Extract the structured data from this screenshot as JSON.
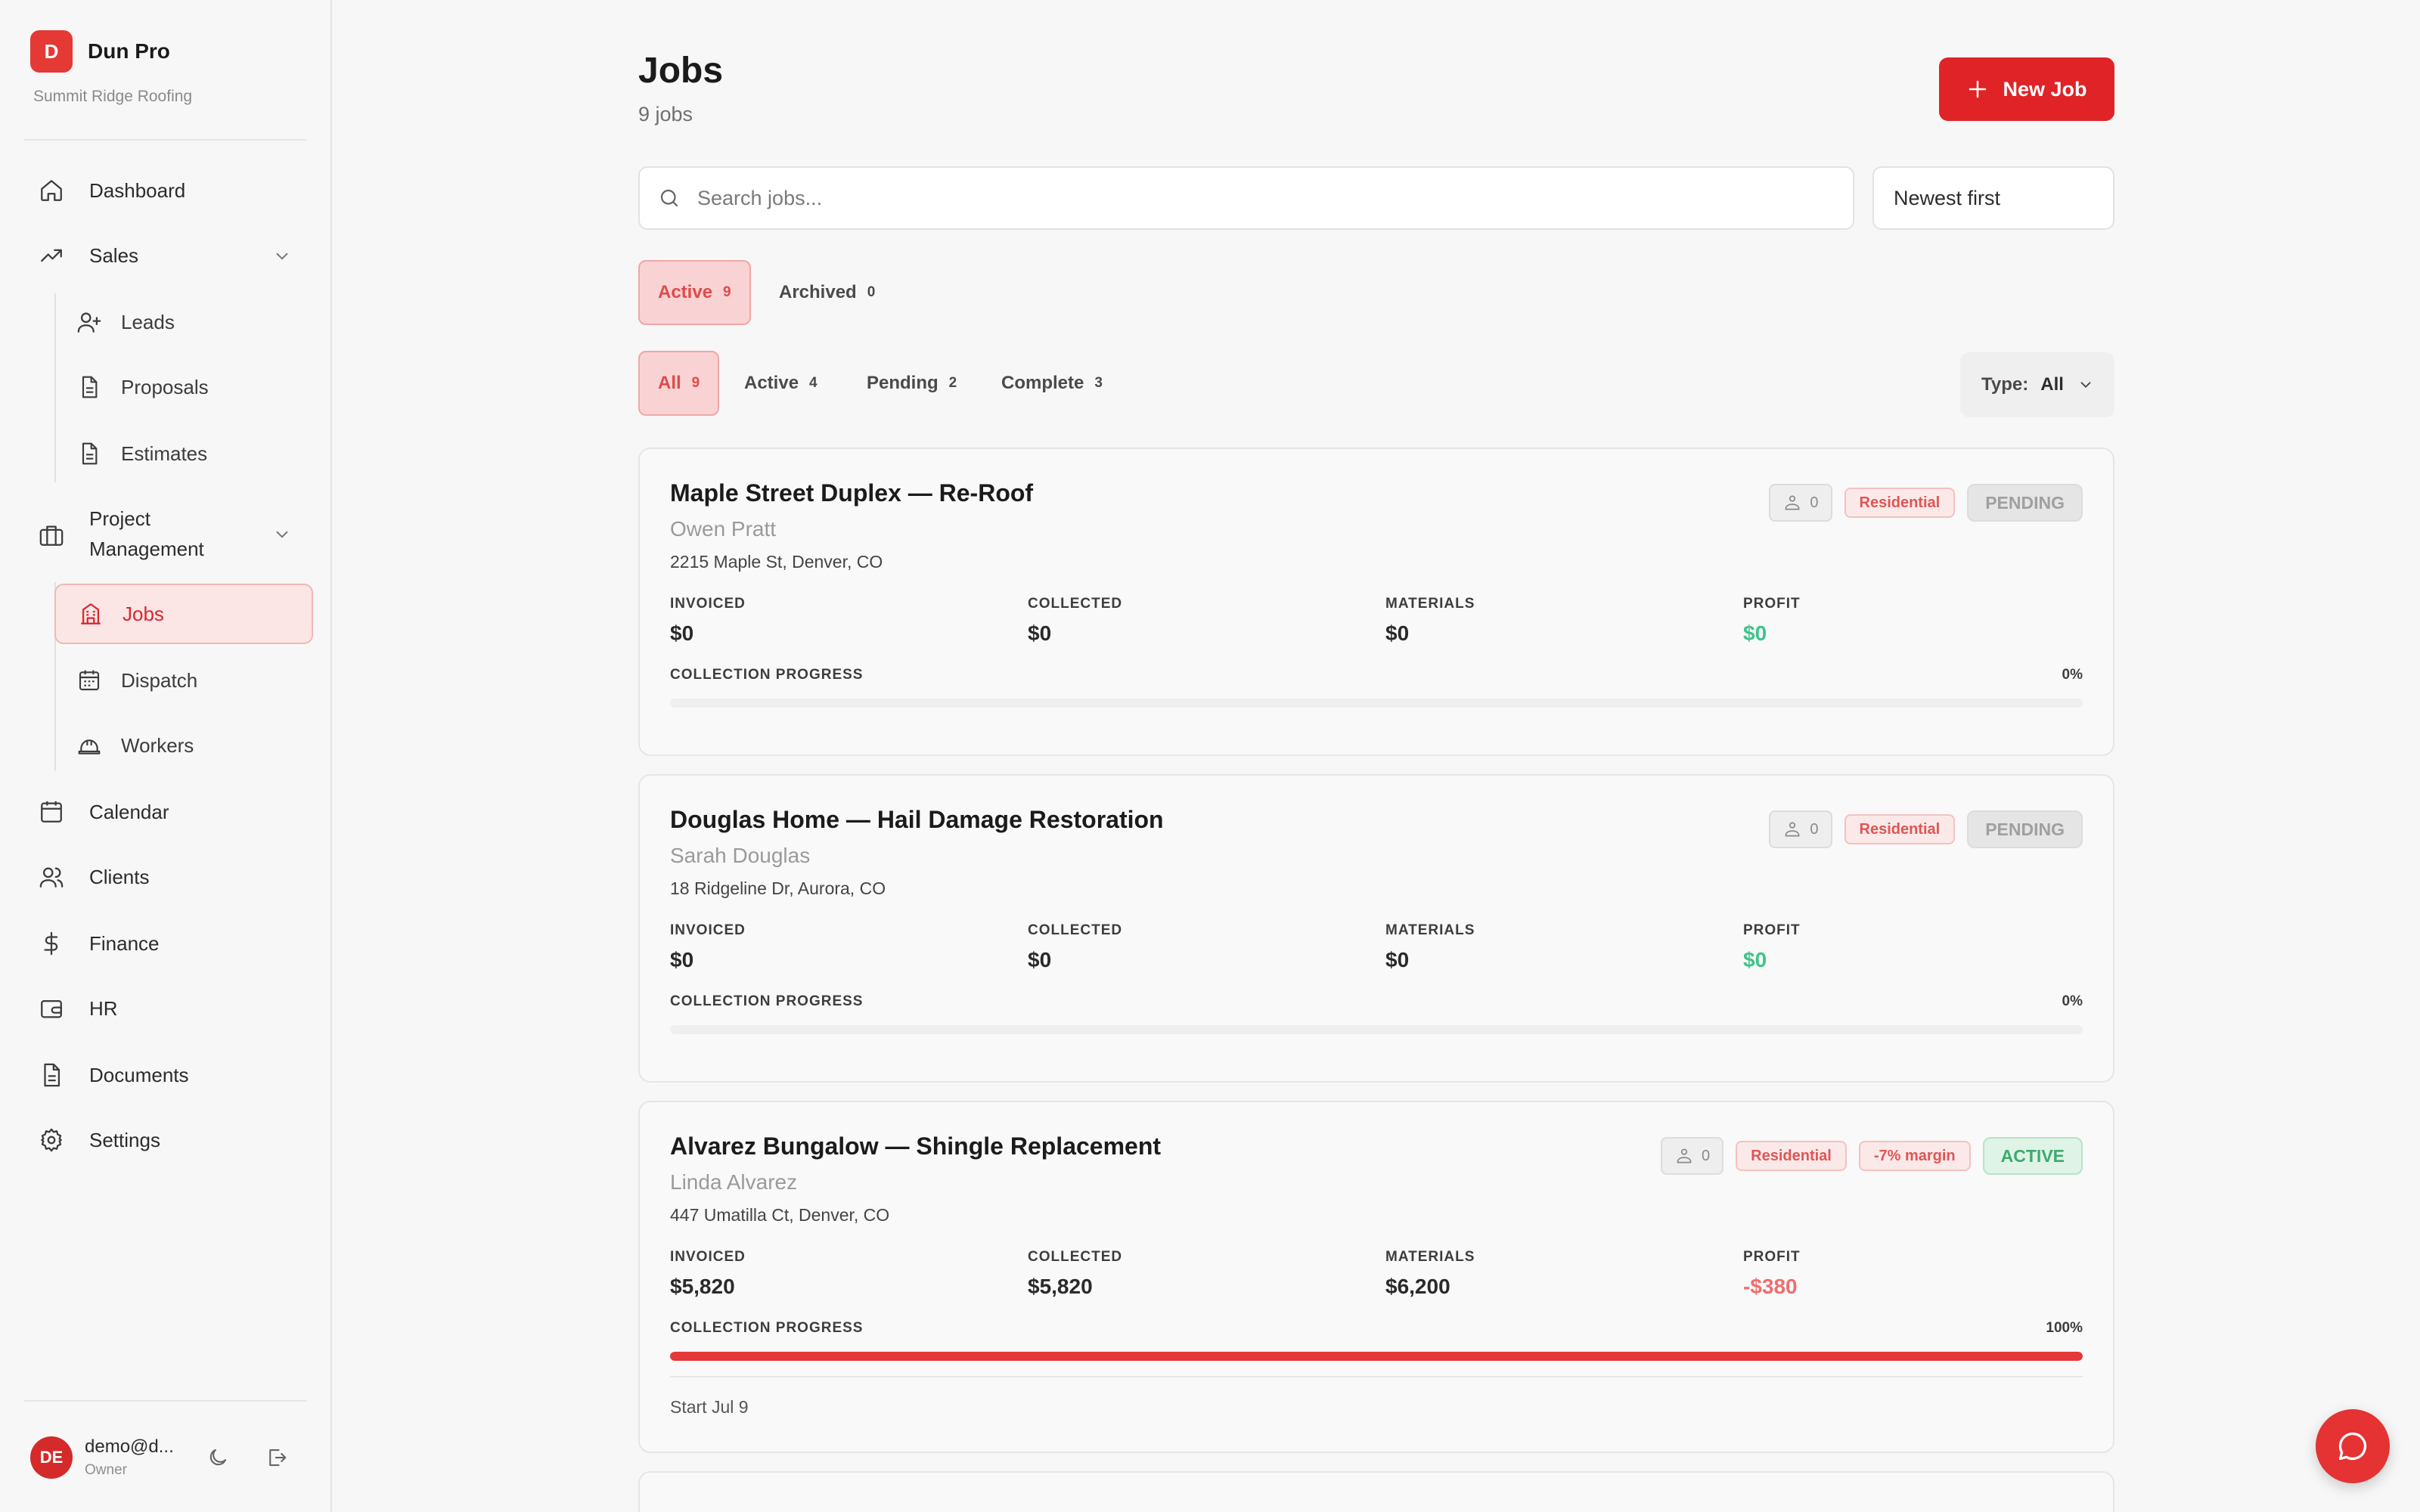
{
  "app": {
    "name": "Dun Pro",
    "logo_letter": "D",
    "company": "Summit Ridge Roofing"
  },
  "nav": {
    "dashboard": "Dashboard",
    "sales": "Sales",
    "leads": "Leads",
    "proposals": "Proposals",
    "estimates": "Estimates",
    "project_management": "Project Management",
    "jobs": "Jobs",
    "dispatch": "Dispatch",
    "workers": "Workers",
    "calendar": "Calendar",
    "clients": "Clients",
    "finance": "Finance",
    "hr": "HR",
    "documents": "Documents",
    "settings": "Settings"
  },
  "user": {
    "initials": "DE",
    "email": "demo@d...",
    "role": "Owner"
  },
  "page": {
    "title": "Jobs",
    "count": "9 jobs",
    "new_button": "New Job"
  },
  "search": {
    "placeholder": "Search jobs..."
  },
  "sort": {
    "value": "Newest first"
  },
  "archive_tabs": [
    {
      "label": "Active",
      "count": "9"
    },
    {
      "label": "Archived",
      "count": "0"
    }
  ],
  "status_tabs": [
    {
      "label": "All",
      "count": "9"
    },
    {
      "label": "Active",
      "count": "4"
    },
    {
      "label": "Pending",
      "count": "2"
    },
    {
      "label": "Complete",
      "count": "3"
    }
  ],
  "type_filter": {
    "label": "Type:",
    "value": "All"
  },
  "labels": {
    "invoiced": "INVOICED",
    "collected": "COLLECTED",
    "materials": "MATERIALS",
    "profit": "PROFIT",
    "progress": "COLLECTION PROGRESS"
  },
  "jobs": [
    {
      "title": "Maple Street Duplex — Re-Roof",
      "client": "Owen Pratt",
      "address": "2215 Maple St, Denver, CO",
      "crew": "0",
      "type": "Residential",
      "status": "PENDING",
      "invoiced": "$0",
      "collected": "$0",
      "materials": "$0",
      "profit": "$0",
      "progress_text": "0%",
      "progress": 0
    },
    {
      "title": "Douglas Home — Hail Damage Restoration",
      "client": "Sarah Douglas",
      "address": "18 Ridgeline Dr, Aurora, CO",
      "crew": "0",
      "type": "Residential",
      "status": "PENDING",
      "invoiced": "$0",
      "collected": "$0",
      "materials": "$0",
      "profit": "$0",
      "progress_text": "0%",
      "progress": 0
    },
    {
      "title": "Alvarez Bungalow — Shingle Replacement",
      "client": "Linda Alvarez",
      "address": "447 Umatilla Ct, Denver, CO",
      "crew": "0",
      "type": "Residential",
      "margin": "-7% margin",
      "status": "ACTIVE",
      "invoiced": "$5,820",
      "collected": "$5,820",
      "materials": "$6,200",
      "profit": "-$380",
      "progress_text": "100%",
      "progress": 1.0,
      "start": "Start Jul 9"
    }
  ]
}
